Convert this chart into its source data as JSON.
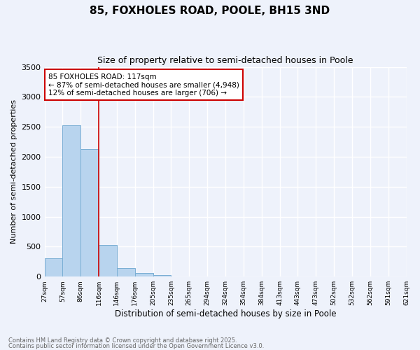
{
  "title": "85, FOXHOLES ROAD, POOLE, BH15 3ND",
  "subtitle": "Size of property relative to semi-detached houses in Poole",
  "xlabel": "Distribution of semi-detached houses by size in Poole",
  "ylabel": "Number of semi-detached properties",
  "bar_values": [
    310,
    2530,
    2130,
    530,
    145,
    60,
    30,
    0,
    0,
    0,
    0,
    0,
    0,
    0,
    0,
    0,
    0,
    0,
    0,
    0
  ],
  "bin_labels": [
    "27sqm",
    "57sqm",
    "86sqm",
    "116sqm",
    "146sqm",
    "176sqm",
    "205sqm",
    "235sqm",
    "265sqm",
    "294sqm",
    "324sqm",
    "354sqm",
    "384sqm",
    "413sqm",
    "443sqm",
    "473sqm",
    "502sqm",
    "532sqm",
    "562sqm",
    "591sqm",
    "621sqm"
  ],
  "bar_color": "#b8d4ee",
  "bar_edge_color": "#7aaed4",
  "background_color": "#eef2fb",
  "grid_color": "#ffffff",
  "annotation_line1": "85 FOXHOLES ROAD: 117sqm",
  "annotation_line2": "← 87% of semi-detached houses are smaller (4,948)",
  "annotation_line3": "12% of semi-detached houses are larger (706) →",
  "annotation_box_color": "#ffffff",
  "annotation_box_edge": "#cc0000",
  "red_line_x": 3.0,
  "ylim": [
    0,
    3500
  ],
  "yticks": [
    0,
    500,
    1000,
    1500,
    2000,
    2500,
    3000,
    3500
  ],
  "footnote1": "Contains HM Land Registry data © Crown copyright and database right 2025.",
  "footnote2": "Contains public sector information licensed under the Open Government Licence v3.0."
}
